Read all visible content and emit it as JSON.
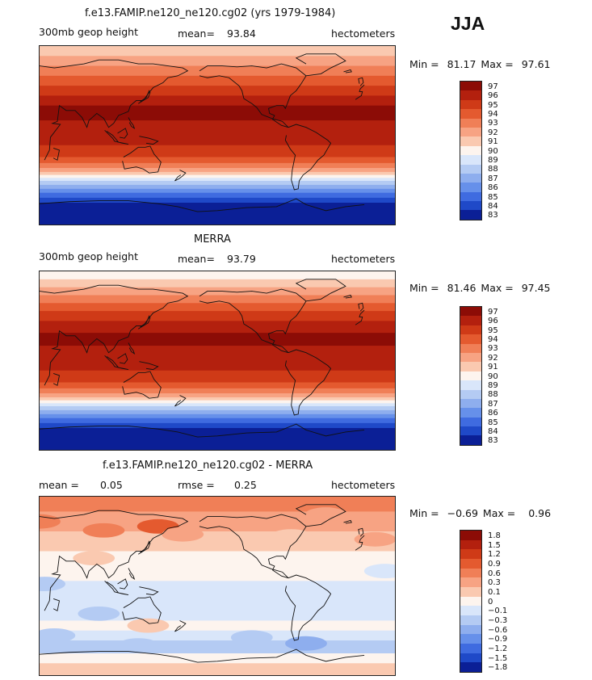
{
  "season": "JJA",
  "chart_data": [
    {
      "type": "heatmap",
      "title": "f.e13.FAMIP.ne120_ne120.cg02 (yrs 1979-1984)",
      "variable": "300mb geop height",
      "mean_label": "mean=",
      "mean": "93.84",
      "units": "hectometers",
      "min_label": "Min =",
      "min": "81.17",
      "max_label": "Max =",
      "max": "97.61",
      "levels": [
        "97",
        "96",
        "95",
        "94",
        "93",
        "92",
        "91",
        "90",
        "89",
        "88",
        "87",
        "86",
        "85",
        "84",
        "83"
      ],
      "colors": [
        "#8c0c06",
        "#b3200e",
        "#cf3a17",
        "#e45a2f",
        "#f07f57",
        "#f7a383",
        "#fac9b0",
        "#fdf4ee",
        "#d9e6fa",
        "#b4cbf3",
        "#8eaeee",
        "#6690ea",
        "#3f6be0",
        "#1f49c8",
        "#0b1f96"
      ],
      "bands_n_to_s": [
        {
          "lat": 90,
          "level": "91"
        },
        {
          "lat": 80,
          "level": "92"
        },
        {
          "lat": 70,
          "level": "93"
        },
        {
          "lat": 60,
          "level": "94"
        },
        {
          "lat": 50,
          "level": "95"
        },
        {
          "lat": 40,
          "level": "96"
        },
        {
          "lat": 30,
          "level": "97"
        },
        {
          "lat": 15,
          "level": "96"
        },
        {
          "lat": -10,
          "level": "95"
        },
        {
          "lat": -22,
          "level": "94"
        },
        {
          "lat": -28,
          "level": "93"
        },
        {
          "lat": -33,
          "level": "92"
        },
        {
          "lat": -37,
          "level": "91"
        },
        {
          "lat": -40,
          "level": "90"
        },
        {
          "lat": -43,
          "level": "89"
        },
        {
          "lat": -46,
          "level": "88"
        },
        {
          "lat": -50,
          "level": "87"
        },
        {
          "lat": -54,
          "level": "86"
        },
        {
          "lat": -58,
          "level": "85"
        },
        {
          "lat": -63,
          "level": "84"
        },
        {
          "lat": -68,
          "level": "83"
        }
      ]
    },
    {
      "type": "heatmap",
      "title": "MERRA",
      "variable": "300mb geop height",
      "mean_label": "mean=",
      "mean": "93.79",
      "units": "hectometers",
      "min_label": "Min =",
      "min": "81.46",
      "max_label": "Max =",
      "max": "97.45",
      "levels": [
        "97",
        "96",
        "95",
        "94",
        "93",
        "92",
        "91",
        "90",
        "89",
        "88",
        "87",
        "86",
        "85",
        "84",
        "83"
      ],
      "colors": [
        "#8c0c06",
        "#b3200e",
        "#cf3a17",
        "#e45a2f",
        "#f07f57",
        "#f7a383",
        "#fac9b0",
        "#fdf4ee",
        "#d9e6fa",
        "#b4cbf3",
        "#8eaeee",
        "#6690ea",
        "#3f6be0",
        "#1f49c8",
        "#0b1f96"
      ],
      "bands_n_to_s": [
        {
          "lat": 90,
          "level": "90"
        },
        {
          "lat": 82,
          "level": "91"
        },
        {
          "lat": 74,
          "level": "92"
        },
        {
          "lat": 66,
          "level": "93"
        },
        {
          "lat": 58,
          "level": "94"
        },
        {
          "lat": 50,
          "level": "95"
        },
        {
          "lat": 40,
          "level": "96"
        },
        {
          "lat": 28,
          "level": "97"
        },
        {
          "lat": 15,
          "level": "96"
        },
        {
          "lat": -10,
          "level": "95"
        },
        {
          "lat": -22,
          "level": "94"
        },
        {
          "lat": -28,
          "level": "93"
        },
        {
          "lat": -33,
          "level": "92"
        },
        {
          "lat": -37,
          "level": "91"
        },
        {
          "lat": -40,
          "level": "90"
        },
        {
          "lat": -43,
          "level": "89"
        },
        {
          "lat": -46,
          "level": "88"
        },
        {
          "lat": -50,
          "level": "87"
        },
        {
          "lat": -54,
          "level": "86"
        },
        {
          "lat": -58,
          "level": "85"
        },
        {
          "lat": -63,
          "level": "84"
        },
        {
          "lat": -68,
          "level": "83"
        }
      ]
    },
    {
      "type": "heatmap",
      "title": "f.e13.FAMIP.ne120_ne120.cg02 - MERRA",
      "mean_label": "mean =",
      "mean": "0.05",
      "rmse_label": "rmse =",
      "rmse": "0.25",
      "units": "hectometers",
      "min_label": "Min =",
      "min": "−0.69",
      "max_label": "Max =",
      "max": "0.96",
      "levels": [
        "1.8",
        "1.5",
        "1.2",
        "0.9",
        "0.6",
        "0.3",
        "0.1",
        "0",
        "−0.1",
        "−0.3",
        "−0.6",
        "−0.9",
        "−1.2",
        "−1.5",
        "−1.8"
      ],
      "colors": [
        "#8c0c06",
        "#b3200e",
        "#cf3a17",
        "#e45a2f",
        "#f07f57",
        "#f7a383",
        "#fac9b0",
        "#fdf4ee",
        "#d9e6fa",
        "#b4cbf3",
        "#8eaeee",
        "#6690ea",
        "#3f6be0",
        "#1f49c8",
        "#0b1f96"
      ],
      "bands_n_to_s": [
        {
          "lat": 90,
          "level": "0.6"
        },
        {
          "lat": 75,
          "level": "0.3"
        },
        {
          "lat": 55,
          "level": "0.1"
        },
        {
          "lat": 35,
          "level": "0"
        },
        {
          "lat": 5,
          "level": "−0.1"
        },
        {
          "lat": -35,
          "level": "0"
        },
        {
          "lat": -45,
          "level": "−0.1"
        },
        {
          "lat": -55,
          "level": "−0.3"
        },
        {
          "lat": -68,
          "level": "0"
        },
        {
          "lat": -78,
          "level": "0.1"
        }
      ],
      "anomalies": [
        {
          "lon": 30,
          "lat": 65,
          "level": "0.6"
        },
        {
          "lon": 95,
          "lat": 56,
          "level": "0.6"
        },
        {
          "lon": 150,
          "lat": 60,
          "level": "0.9"
        },
        {
          "lon": 175,
          "lat": 52,
          "level": "0.3"
        },
        {
          "lon": 85,
          "lat": 28,
          "level": "0.1"
        },
        {
          "lon": 10,
          "lat": 47,
          "level": "0.3"
        },
        {
          "lon": 320,
          "lat": 72,
          "level": "0.3"
        },
        {
          "lon": 285,
          "lat": 50,
          "level": "0.1"
        },
        {
          "lon": 20,
          "lat": 15,
          "level": "−0.1"
        },
        {
          "lon": 35,
          "lat": 2,
          "level": "−0.3"
        },
        {
          "lon": 300,
          "lat": -10,
          "level": "−0.1"
        },
        {
          "lon": 90,
          "lat": -28,
          "level": "−0.3"
        },
        {
          "lon": 140,
          "lat": -40,
          "level": "0.1"
        },
        {
          "lon": 130,
          "lat": -60,
          "level": "−0.3"
        },
        {
          "lon": 300,
          "lat": -58,
          "level": "−0.6"
        },
        {
          "lon": 245,
          "lat": -52,
          "level": "−0.3"
        },
        {
          "lon": 45,
          "lat": -50,
          "level": "−0.3"
        }
      ]
    }
  ]
}
